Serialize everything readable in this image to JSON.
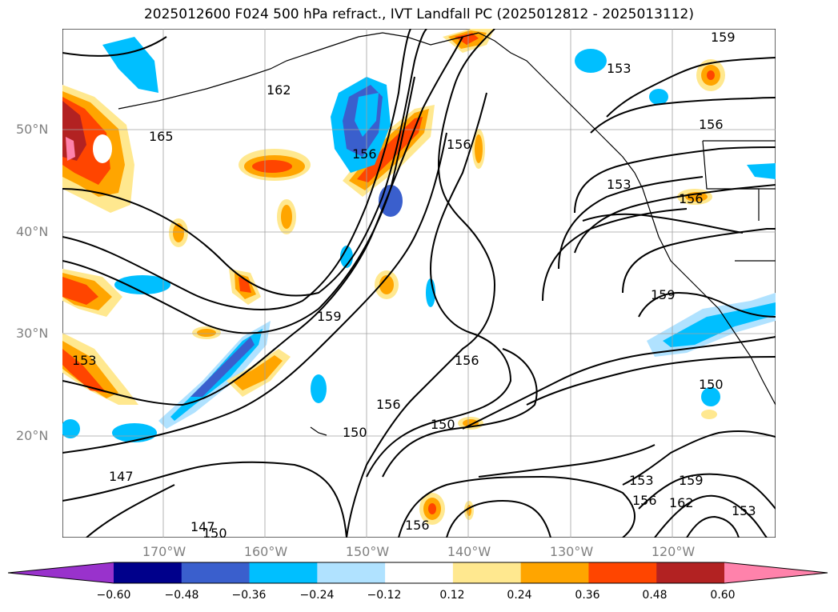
{
  "title": "2025012600 F024 500 hPa refract., IVT Landfall PC (2025012812 - 2025013112)",
  "lat_labels": [
    "50°N",
    "40°N",
    "30°N",
    "20°N"
  ],
  "lon_labels": [
    "170°W",
    "160°W",
    "150°W",
    "140°W",
    "130°W",
    "120°W"
  ],
  "colorbar": {
    "ticks": [
      "−0.60",
      "−0.48",
      "−0.36",
      "−0.24",
      "−0.12",
      "0.12",
      "0.24",
      "0.36",
      "0.48",
      "0.60"
    ],
    "colors": [
      "#9932CC",
      "#00008B",
      "#3A5FCD",
      "#00BFFF",
      "#B0E2FF",
      "#FFFFFF",
      "#FFE88F",
      "#FFA500",
      "#FF4500",
      "#B22222",
      "#FF82AB"
    ]
  },
  "contour_labels": [
    "159",
    "153",
    "162",
    "165",
    "156",
    "156",
    "156",
    "153",
    "156",
    "159",
    "159",
    "156",
    "150",
    "156",
    "150",
    "150",
    "153",
    "147",
    "147",
    "150",
    "153",
    "156",
    "159",
    "162",
    "153",
    "156"
  ]
}
